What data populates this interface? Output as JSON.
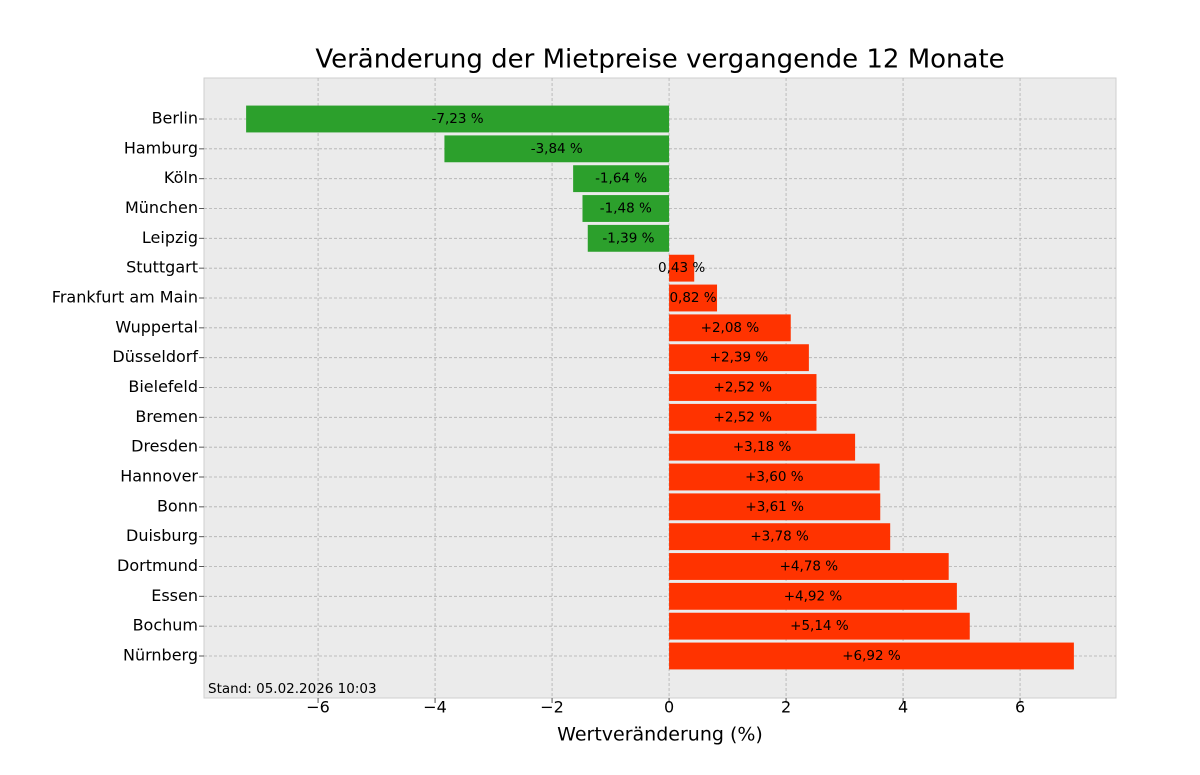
{
  "chart_data": {
    "type": "barh",
    "title": "Veränderung der Mietpreise vergangende 12 Monate",
    "xlabel": "Wertveränderung (%)",
    "annotation": "Stand: 05.02.2026 10:03",
    "categories": [
      "Berlin",
      "Hamburg",
      "Köln",
      "München",
      "Leipzig",
      "Stuttgart",
      "Frankfurt am Main",
      "Wuppertal",
      "Düsseldorf",
      "Bielefeld",
      "Bremen",
      "Dresden",
      "Hannover",
      "Bonn",
      "Duisburg",
      "Dortmund",
      "Essen",
      "Bochum",
      "Nürnberg"
    ],
    "values": [
      -7.23,
      -3.84,
      -1.64,
      -1.48,
      -1.39,
      0.43,
      0.82,
      2.08,
      2.39,
      2.52,
      2.52,
      3.18,
      3.6,
      3.61,
      3.78,
      4.78,
      4.92,
      5.14,
      6.92
    ],
    "value_labels": [
      "-7,23 %",
      "-3,84 %",
      "-1,64 %",
      "-1,48 %",
      "-1,39 %",
      "0,43 %",
      "0,82 %",
      "+2,08 %",
      "+2,39 %",
      "+2,52 %",
      "+2,52 %",
      "+3,18 %",
      "+3,60 %",
      "+3,61 %",
      "+3,78 %",
      "+4,78 %",
      "+4,92 %",
      "+5,14 %",
      "+6,92 %"
    ],
    "negative_color": "#2ca02c",
    "positive_color": "#ff3300",
    "xlim": [
      -7.95,
      7.64
    ],
    "xticks": [
      {
        "value": -6,
        "label": "−6"
      },
      {
        "value": -4,
        "label": "−4"
      },
      {
        "value": -2,
        "label": "−2"
      },
      0,
      2,
      4,
      6
    ],
    "grid": true
  }
}
